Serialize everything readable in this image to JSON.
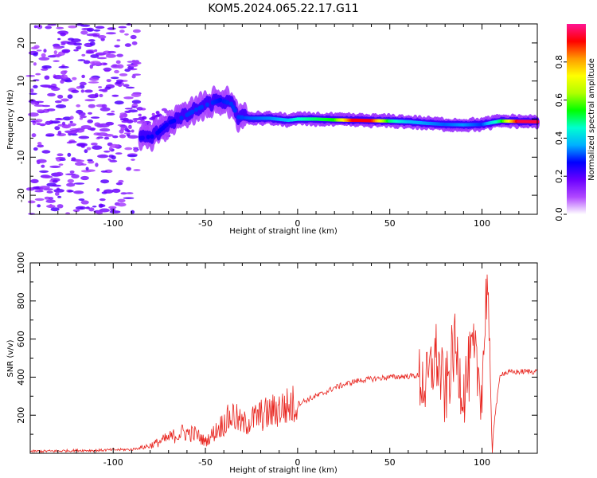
{
  "title": "KOM5.2024.065.22.17.G11",
  "chart_data": [
    {
      "type": "heatmap",
      "xlabel": "Height of straight line (km)",
      "ylabel": "Frequency (Hz)",
      "xlim": [
        -145,
        130
      ],
      "ylim": [
        -25,
        25
      ],
      "xticks": [
        -100,
        -50,
        0,
        50,
        100
      ],
      "xtick_labels": [
        "-100",
        "-50",
        "0",
        "50",
        "100"
      ],
      "yticks": [
        -20,
        -10,
        0,
        10,
        20
      ],
      "ytick_labels": [
        "-20",
        "-10",
        "0",
        "10",
        "20"
      ],
      "ridge": {
        "x": [
          -85,
          -78,
          -70,
          -62,
          -55,
          -48,
          -42,
          -36,
          -32,
          -25,
          -15,
          -5,
          0,
          10,
          20,
          30,
          40,
          50,
          60,
          70,
          80,
          90,
          100,
          110,
          120,
          130
        ],
        "freq": [
          -5,
          -4.5,
          -1,
          0.5,
          2.5,
          4,
          5,
          4,
          0.5,
          0.2,
          0.2,
          -0.3,
          0,
          0,
          -0.2,
          -0.3,
          -0.4,
          -0.5,
          -0.7,
          -1.1,
          -1.4,
          -1.5,
          -1.4,
          -0.5,
          -0.6,
          -0.7
        ],
        "amplitude": [
          0.25,
          0.28,
          0.26,
          0.3,
          0.3,
          0.3,
          0.28,
          0.3,
          0.3,
          0.32,
          0.34,
          0.38,
          0.45,
          0.5,
          0.55,
          0.92,
          0.92,
          0.5,
          0.38,
          0.35,
          0.32,
          0.35,
          0.3,
          0.5,
          0.95,
          0.95
        ]
      },
      "colorbar": {
        "label": "Normalized spectral amplitude",
        "range": [
          0,
          1
        ],
        "ticks": [
          0.0,
          0.2,
          0.4,
          0.6,
          0.8
        ],
        "tick_labels": [
          "0.0",
          "0.2",
          "0.4",
          "0.6",
          "0.8"
        ],
        "colors": [
          "#ffffff",
          "#b048ff",
          "#6a00ff",
          "#0000ff",
          "#00b0ff",
          "#00ffd0",
          "#00ff00",
          "#b0ff00",
          "#ffff00",
          "#ff9900",
          "#ff0000",
          "#ff1493"
        ]
      }
    },
    {
      "type": "line",
      "xlabel": "Height of straight line (km)",
      "ylabel": "SNR (v/v)",
      "xlim": [
        -145,
        130
      ],
      "ylim": [
        0,
        1000
      ],
      "xticks": [
        -100,
        -50,
        0,
        50,
        100
      ],
      "xtick_labels": [
        "-100",
        "-50",
        "0",
        "50",
        "100"
      ],
      "yticks": [
        200,
        400,
        600,
        800,
        1000
      ],
      "ytick_labels": [
        "200",
        "400",
        "600",
        "800",
        "1000"
      ],
      "color": "#e8241e",
      "series": [
        {
          "x": [
            -145,
            -130,
            -120,
            -110,
            -100,
            -90,
            -80,
            -70,
            -62,
            -55,
            -50,
            -45,
            -40,
            -35,
            -30,
            -25,
            -20,
            -15,
            -10,
            -5,
            0,
            5,
            10,
            15,
            20,
            25,
            30,
            35,
            40,
            45,
            50,
            55,
            60,
            65,
            70,
            75,
            80,
            85,
            90,
            95,
            100,
            103,
            105,
            110,
            115,
            120,
            125,
            130
          ],
          "values": [
            10,
            12,
            15,
            15,
            18,
            20,
            40,
            80,
            110,
            100,
            60,
            110,
            160,
            200,
            150,
            175,
            200,
            210,
            235,
            245,
            260,
            280,
            300,
            320,
            345,
            360,
            375,
            385,
            390,
            395,
            400,
            402,
            405,
            408,
            350,
            520,
            300,
            560,
            320,
            520,
            340,
            980,
            40,
            420,
            425,
            428,
            430,
            430
          ]
        }
      ]
    }
  ]
}
